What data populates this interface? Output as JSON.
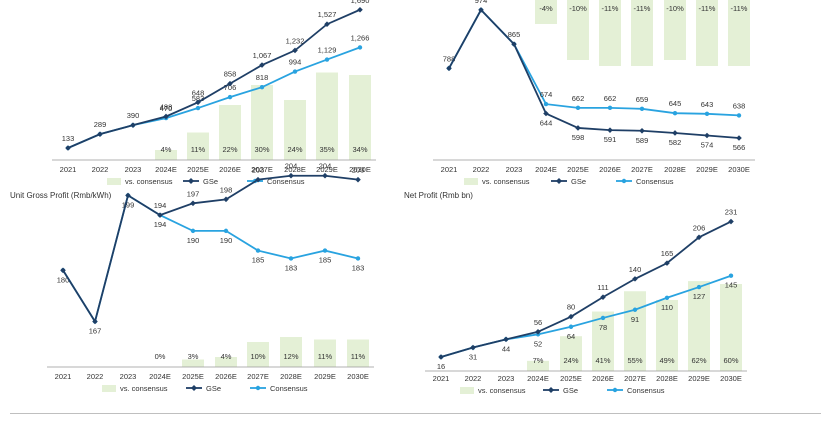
{
  "colors": {
    "gse": "#1f3f66",
    "consensus": "#29a3e0",
    "bars": "#e4f0d6",
    "axis": "#999999",
    "divider": "#bfbfbf"
  },
  "chart_data": [
    {
      "id": "top-left",
      "type": "line",
      "title": "",
      "categories": [
        "2021",
        "2022",
        "2023",
        "2024E",
        "2025E",
        "2026E",
        "2027E",
        "2028E",
        "2029E",
        "2030E"
      ],
      "series": [
        {
          "name": "GSe",
          "values": [
            133,
            289,
            390,
            488,
            648,
            858,
            1067,
            1232,
            1527,
            1690
          ],
          "labels": [
            null,
            null,
            null,
            "488",
            "648",
            "858",
            "1,067",
            "1,232",
            "1,527",
            "1,690"
          ]
        },
        {
          "name": "Consensus",
          "values": [
            133,
            289,
            390,
            470,
            583,
            706,
            818,
            994,
            1129,
            1266
          ],
          "labels": [
            "133",
            "289",
            "390",
            "470",
            "583",
            "706",
            "818",
            "994",
            "1,129",
            "1,266"
          ]
        }
      ],
      "bar_series": {
        "name": "vs. consensus",
        "values": [
          null,
          null,
          null,
          4,
          11,
          22,
          30,
          24,
          35,
          34
        ],
        "labels": [
          null,
          null,
          null,
          "4%",
          "11%",
          "22%",
          "30%",
          "24%",
          "35%",
          "34%"
        ]
      },
      "legend": [
        "vs. consensus",
        "GSe",
        "Consensus"
      ]
    },
    {
      "id": "top-right",
      "type": "line",
      "title": "",
      "categories": [
        "2021",
        "2022",
        "2023",
        "2024E",
        "2025E",
        "2026E",
        "2027E",
        "2028E",
        "2029E",
        "2030E"
      ],
      "series": [
        {
          "name": "GSe",
          "values": [
            788,
            974,
            865,
            644,
            598,
            591,
            589,
            582,
            574,
            566
          ],
          "labels": [
            null,
            null,
            null,
            "644",
            "598",
            "591",
            "589",
            "582",
            "574",
            "566"
          ]
        },
        {
          "name": "Consensus",
          "values": [
            788,
            974,
            865,
            674,
            662,
            662,
            659,
            645,
            643,
            638
          ],
          "labels": [
            "788",
            "974",
            "865",
            "674",
            "662",
            "662",
            "659",
            "645",
            "643",
            "638"
          ]
        }
      ],
      "bar_series": {
        "name": "vs. consensus",
        "values": [
          null,
          null,
          null,
          -4,
          -10,
          -11,
          -11,
          -10,
          -11,
          -11
        ],
        "labels": [
          null,
          null,
          null,
          "-4%",
          "-10%",
          "-11%",
          "-11%",
          "-10%",
          "-11%",
          "-11%"
        ]
      },
      "legend": [
        "vs. consensus",
        "GSe",
        "Consensus"
      ]
    },
    {
      "id": "bottom-left",
      "type": "line",
      "title": "Unit Gross Profit (Rmb/kWh)",
      "categories": [
        "2021",
        "2022",
        "2023",
        "2024E",
        "2025E",
        "2026E",
        "2027E",
        "2028E",
        "2029E",
        "2030E"
      ],
      "series": [
        {
          "name": "GSe",
          "values": [
            180,
            167,
            199,
            194,
            197,
            198,
            203,
            204,
            204,
            203
          ],
          "labels": [
            null,
            null,
            null,
            "194",
            "197",
            "198",
            "203",
            "204",
            "204",
            "203"
          ]
        },
        {
          "name": "Consensus",
          "values": [
            180,
            167,
            199,
            194,
            190,
            190,
            185,
            183,
            185,
            183
          ],
          "labels": [
            "180",
            "167",
            "199",
            "194",
            "190",
            "190",
            "185",
            "183",
            "185",
            "183"
          ]
        }
      ],
      "bar_series": {
        "name": "vs. consensus",
        "values": [
          null,
          null,
          null,
          0,
          3,
          4,
          10,
          12,
          11,
          11
        ],
        "labels": [
          null,
          null,
          null,
          "0%",
          "3%",
          "4%",
          "10%",
          "12%",
          "11%",
          "11%"
        ]
      },
      "legend": [
        "vs. consensus",
        "GSe",
        "Consensus"
      ]
    },
    {
      "id": "bottom-right",
      "type": "line",
      "title": "Net Profit (Rmb bn)",
      "categories": [
        "2021",
        "2022",
        "2023",
        "2024E",
        "2025E",
        "2026E",
        "2027E",
        "2028E",
        "2029E",
        "2030E"
      ],
      "series": [
        {
          "name": "GSe",
          "values": [
            16,
            31,
            44,
            56,
            80,
            111,
            140,
            165,
            206,
            231
          ],
          "labels": [
            null,
            null,
            null,
            "56",
            "80",
            "111",
            "140",
            "165",
            "206",
            "231"
          ]
        },
        {
          "name": "Consensus",
          "values": [
            16,
            31,
            44,
            52,
            64,
            78,
            91,
            110,
            127,
            145
          ],
          "labels": [
            "16",
            "31",
            "44",
            "52",
            "64",
            "78",
            "91",
            "110",
            "127",
            "145"
          ]
        }
      ],
      "bar_series": {
        "name": "vs. consensus",
        "values": [
          null,
          null,
          null,
          7,
          24,
          41,
          55,
          49,
          62,
          60
        ],
        "labels": [
          null,
          null,
          null,
          "7%",
          "24%",
          "41%",
          "55%",
          "49%",
          "62%",
          "60%"
        ]
      },
      "legend": [
        "vs. consensus",
        "GSe",
        "Consensus"
      ]
    }
  ]
}
